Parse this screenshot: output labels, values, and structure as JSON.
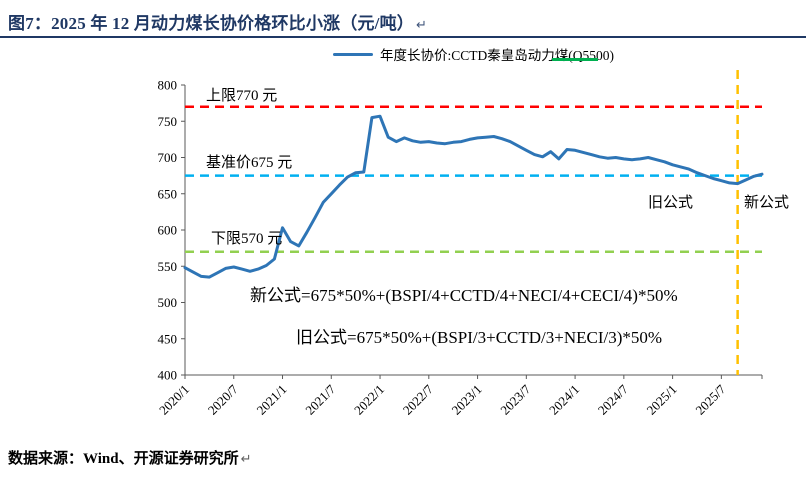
{
  "figure": {
    "title": "图7：2025 年 12 月动力煤长协价格环比小涨（元/吨）",
    "title_return_mark": "↵",
    "source": "数据来源：Wind、开源证券研究所",
    "source_return_mark": "↵"
  },
  "legend": {
    "label": "年度长协价:CCTD秦皇岛动力煤(Q5500)"
  },
  "annotations": {
    "upper_limit": "上限770 元",
    "base_price": "基准价675 元",
    "lower_limit": "下限570 元",
    "old_formula_label": "旧公式",
    "new_formula_label": "新公式",
    "new_formula": "新公式=675*50%+(BSPI/4+CCTD/4+NECI/4+CECI/4)*50%",
    "old_formula": "旧公式=675*50%+(BSPI/3+CCTD/3+NECI/3)*50%"
  },
  "colors": {
    "title_navy": "#1F3864",
    "series_blue": "#2E75B6",
    "upper_red": "#FF0000",
    "base_cyan": "#00B0F0",
    "lower_green": "#92D050",
    "vline_yellow": "#FFC000",
    "legend_mark_green": "#00B050"
  },
  "chart_data": {
    "type": "line",
    "title": "年度长协价:CCTD秦皇岛动力煤(Q5500)",
    "ylabel": "元/吨",
    "ylim": [
      400,
      800
    ],
    "ytick_step": 50,
    "grid": false,
    "legend_position": "top-center",
    "x_tick_labels": [
      "2020/1",
      "2020/7",
      "2021/1",
      "2021/7",
      "2022/1",
      "2022/7",
      "2023/1",
      "2023/7",
      "2024/1",
      "2024/7",
      "2025/1",
      "2025/7"
    ],
    "x_start": "2020/1",
    "x_frequency": "monthly",
    "series": [
      {
        "name": "年度长协价:CCTD秦皇岛动力煤(Q5500)",
        "color": "#2E75B6",
        "values": [
          548,
          542,
          536,
          535,
          541,
          547,
          549,
          546,
          543,
          546,
          551,
          560,
          603,
          584,
          578,
          597,
          617,
          638,
          650,
          662,
          673,
          679,
          680,
          755,
          757,
          728,
          722,
          727,
          723,
          721,
          722,
          720,
          719,
          721,
          722,
          725,
          727,
          728,
          729,
          726,
          722,
          716,
          710,
          704,
          701,
          708,
          698,
          711,
          710,
          707,
          704,
          701,
          699,
          700,
          698,
          697,
          698,
          700,
          697,
          694,
          690,
          687,
          684,
          679,
          675,
          671,
          668,
          665,
          664,
          669,
          674,
          677
        ]
      }
    ],
    "ref_lines": [
      {
        "label": "上限770 元",
        "value": 770,
        "color": "#FF0000",
        "style": "dashed"
      },
      {
        "label": "基准价675 元",
        "value": 675,
        "color": "#00B0F0",
        "style": "dashed"
      },
      {
        "label": "下限570 元",
        "value": 570,
        "color": "#92D050",
        "style": "dashed"
      }
    ],
    "vline": {
      "x_index": 68,
      "color": "#FFC000",
      "style": "dashed",
      "label_left": "旧公式",
      "label_right": "新公式"
    }
  }
}
